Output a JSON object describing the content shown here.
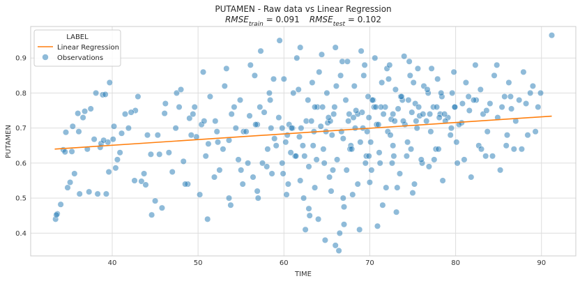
{
  "chart_data": {
    "type": "scatter",
    "title": "PUTAMEN - Raw data vs Linear Regression",
    "subtitle": {
      "rmse_train_label": "RMSE",
      "rmse_train_sub": "train",
      "rmse_train_value": " = 0.091",
      "rmse_test_label": "RMSE",
      "rmse_test_sub": "test",
      "rmse_test_value": " = 0.102"
    },
    "xlabel": "TIME",
    "ylabel": "PUTAMEN",
    "xlim": [
      30.5,
      94
    ],
    "ylim": [
      0.335,
      0.99
    ],
    "xticks": [
      40,
      50,
      60,
      70,
      80,
      90
    ],
    "yticks": [
      0.4,
      0.5,
      0.6,
      0.7,
      0.8,
      0.9
    ],
    "grid": true,
    "legend": {
      "title": "LABEL",
      "position": "top-left",
      "entries": [
        {
          "label": "Linear Regression",
          "kind": "line",
          "color": "#ff7f0e"
        },
        {
          "label": "Observations",
          "kind": "marker",
          "color": "#1f77b4"
        }
      ]
    },
    "series": [
      {
        "name": "Linear Regression",
        "kind": "line",
        "color": "#ff7f0e",
        "x": [
          33.3,
          91.2
        ],
        "y": [
          0.64,
          0.734
        ]
      },
      {
        "name": "Observations",
        "kind": "scatter",
        "color": "#1f77b4",
        "opacity": 0.5,
        "x": [
          33.4,
          33.6,
          34.0,
          34.3,
          34.8,
          35.1,
          35.4,
          35.6,
          36.2,
          36.6,
          37.1,
          37.5,
          38.3,
          38.6,
          38.9,
          39.3,
          39.5,
          39.7,
          40.2,
          40.6,
          41.1,
          41.5,
          42.6,
          43.0,
          43.4,
          44.1,
          44.5,
          45.3,
          45.8,
          33.5,
          34.6,
          35.3,
          36.1,
          36.8,
          37.9,
          38.7,
          39.6,
          40.1,
          40.9,
          41.9,
          42.7,
          43.7,
          44.6,
          45.5,
          46.1,
          38.1,
          39.2,
          40.4,
          34.5,
          36.0,
          37.3,
          39.0,
          42.2,
          43.9,
          45.0,
          46.6,
          47.5,
          48.3,
          49.0,
          49.8,
          50.4,
          51.2,
          52.0,
          52.9,
          53.6,
          54.4,
          55.3,
          56.0,
          56.9,
          57.7,
          58.5,
          59.4,
          60.2,
          61.0,
          61.8,
          62.6,
          63.5,
          64.3,
          65.1,
          65.8,
          66.7,
          67.5,
          68.3,
          69.1,
          69.9,
          70.8,
          71.6,
          72.5,
          73.3,
          74.1,
          74.9,
          75.8,
          76.6,
          77.4,
          78.2,
          79.1,
          79.9,
          80.7,
          81.6,
          82.4,
          83.2,
          84.0,
          84.9,
          85.7,
          86.5,
          87.4,
          88.2,
          89.0,
          89.9,
          91.2,
          47.0,
          48.8,
          50.9,
          52.5,
          54.7,
          56.4,
          58.1,
          59.8,
          61.3,
          62.9,
          64.6,
          66.2,
          67.8,
          69.5,
          71.1,
          72.8,
          74.4,
          76.1,
          77.7,
          79.4,
          81.0,
          82.7,
          84.3,
          86.0,
          87.7,
          89.3,
          46.2,
          48.0,
          49.6,
          51.4,
          53.1,
          54.9,
          56.6,
          58.3,
          60.0,
          61.7,
          63.3,
          65.0,
          66.6,
          68.2,
          69.8,
          71.4,
          73.0,
          74.7,
          76.3,
          77.9,
          79.6,
          81.2,
          82.9,
          84.5,
          86.2,
          87.9,
          47.4,
          49.2,
          50.7,
          52.3,
          53.9,
          55.6,
          57.2,
          58.9,
          60.6,
          62.2,
          63.9,
          65.6,
          67.2,
          68.9,
          70.5,
          72.1,
          73.8,
          75.4,
          77.1,
          78.7,
          80.4,
          82.1,
          83.7,
          85.4,
          87.0,
          88.7,
          48.5,
          50.2,
          51.9,
          53.6,
          55.2,
          56.9,
          58.6,
          60.3,
          61.9,
          63.6,
          65.3,
          66.9,
          68.6,
          70.2,
          71.9,
          73.5,
          75.2,
          76.9,
          78.5,
          80.2,
          81.8,
          83.5,
          85.2,
          86.8,
          47.8,
          50.6,
          53.3,
          56.1,
          58.8,
          61.5,
          64.1,
          66.8,
          69.4,
          72.0,
          74.6,
          77.2,
          79.8,
          82.3,
          84.8,
          51.1,
          53.8,
          57.0,
          60.5,
          63.0,
          65.5,
          67.0,
          68.0,
          70.0,
          71.5,
          73.2,
          75.0,
          57.3,
          59.5,
          61.9,
          64.4,
          66.0,
          67.4,
          69.0,
          70.6,
          72.3,
          74.0,
          75.6,
          62.5,
          64.8,
          66.4,
          68.8,
          70.9,
          73.1,
          55.8,
          58.0,
          60.8,
          63.8,
          65.7,
          67.7,
          69.6,
          71.2,
          72.7,
          74.3,
          76.0,
          78.0,
          66.0,
          66.5,
          67.0,
          64.0,
          62.9,
          62.3,
          59.8,
          63.6,
          65.4,
          68.6,
          70.4,
          71.8,
          73.6,
          75.3,
          76.8,
          78.4,
          59.1,
          61.4,
          64.9,
          67.9,
          69.2,
          70.1,
          71.0,
          72.4,
          73.9,
          75.5,
          77.0,
          78.8,
          60.4,
          62.0,
          63.4,
          65.2,
          66.9,
          68.4,
          69.7,
          71.3,
          72.9,
          74.5,
          76.2,
          77.8,
          79.5,
          61.1,
          62.8,
          64.5,
          66.1,
          67.6,
          69.3,
          70.7,
          72.2,
          73.7,
          75.1,
          76.7,
          78.3,
          79.9,
          81.5,
          55.0,
          57.5,
          59.9,
          62.4,
          64.7,
          67.3,
          69.9,
          72.6,
          74.8,
          77.5,
          80.1,
          83.0,
          85.9,
          88.4,
          49.4,
          52.2,
          54.2,
          56.7,
          58.4,
          60.9,
          63.2,
          65.9,
          68.1,
          70.3,
          72.7,
          75.7,
          78.1,
          80.8,
          83.6,
          86.4,
          89.6
        ],
        "y": [
          0.44,
          0.455,
          0.482,
          0.638,
          0.53,
          0.545,
          0.705,
          0.57,
          0.512,
          0.73,
          0.64,
          0.755,
          0.512,
          0.645,
          0.795,
          0.512,
          0.66,
          0.83,
          0.705,
          0.61,
          0.685,
          0.74,
          0.55,
          0.79,
          0.548,
          0.68,
          0.625,
          0.68,
          0.472,
          0.452,
          0.688,
          0.633,
          0.69,
          0.748,
          0.668,
          0.656,
          0.575,
          0.668,
          0.63,
          0.7,
          0.75,
          0.57,
          0.452,
          0.625,
          0.742,
          0.8,
          0.796,
          0.586,
          0.632,
          0.742,
          0.518,
          0.665,
          0.745,
          0.538,
          0.492,
          0.63,
          0.8,
          0.605,
          0.728,
          0.675,
          0.71,
          0.655,
          0.72,
          0.64,
          0.665,
          0.7,
          0.69,
          0.735,
          0.71,
          0.745,
          0.7,
          0.73,
          0.66,
          0.7,
          0.675,
          0.72,
          0.69,
          0.705,
          0.715,
          0.74,
          0.69,
          0.72,
          0.7,
          0.745,
          0.73,
          0.71,
          0.74,
          0.725,
          0.755,
          0.71,
          0.745,
          0.735,
          0.72,
          0.76,
          0.74,
          0.73,
          0.76,
          0.715,
          0.75,
          0.78,
          0.74,
          0.77,
          0.73,
          0.79,
          0.755,
          0.78,
          0.77,
          0.82,
          0.8,
          0.965,
          0.575,
          0.54,
          0.62,
          0.58,
          0.61,
          0.56,
          0.64,
          0.6,
          0.62,
          0.59,
          0.64,
          0.61,
          0.65,
          0.6,
          0.63,
          0.62,
          0.66,
          0.6,
          0.64,
          0.68,
          0.61,
          0.65,
          0.62,
          0.68,
          0.64,
          0.69,
          0.77,
          0.81,
          0.76,
          0.79,
          0.82,
          0.78,
          0.85,
          0.8,
          0.84,
          0.81,
          0.83,
          0.8,
          0.85,
          0.82,
          0.79,
          0.83,
          0.81,
          0.85,
          0.82,
          0.84,
          0.8,
          0.83,
          0.81,
          0.85,
          0.83,
          0.86,
          0.7,
          0.68,
          0.72,
          0.66,
          0.74,
          0.69,
          0.76,
          0.67,
          0.71,
          0.65,
          0.76,
          0.68,
          0.78,
          0.66,
          0.76,
          0.69,
          0.78,
          0.72,
          0.69,
          0.74,
          0.71,
          0.78,
          0.69,
          0.76,
          0.72,
          0.8,
          0.54,
          0.51,
          0.56,
          0.5,
          0.54,
          0.52,
          0.57,
          0.51,
          0.55,
          0.53,
          0.56,
          0.5,
          0.54,
          0.58,
          0.53,
          0.57,
          0.54,
          0.59,
          0.55,
          0.6,
          0.56,
          0.62,
          0.58,
          0.64,
          0.76,
          0.86,
          0.87,
          0.88,
          0.84,
          0.9,
          0.86,
          0.89,
          0.88,
          0.87,
          0.89,
          0.87,
          0.86,
          0.88,
          0.88,
          0.44,
          0.48,
          0.5,
          0.54,
          0.45,
          0.52,
          0.475,
          0.51,
          0.545,
          0.48,
          0.53,
          0.515,
          0.92,
          0.95,
          0.93,
          0.91,
          0.93,
          0.89,
          0.92,
          0.9,
          0.88,
          0.905,
          0.87,
          0.41,
          0.38,
          0.35,
          0.41,
          0.42,
          0.46,
          0.6,
          0.59,
          0.63,
          0.61,
          0.58,
          0.64,
          0.62,
          0.6,
          0.65,
          0.62,
          0.61,
          0.64,
          0.365,
          0.4,
          0.425,
          0.44,
          0.47,
          0.5,
          0.7,
          0.76,
          0.72,
          0.74,
          0.78,
          0.76,
          0.79,
          0.77,
          0.8,
          0.79,
          0.65,
          0.62,
          0.69,
          0.64,
          0.7,
          0.66,
          0.71,
          0.68,
          0.72,
          0.7,
          0.74,
          0.72,
          0.68,
          0.7,
          0.65,
          0.73,
          0.67,
          0.75,
          0.69,
          0.76,
          0.72,
          0.78,
          0.74,
          0.76,
          0.7,
          0.8,
          0.78,
          0.76,
          0.82,
          0.74,
          0.85,
          0.76,
          0.84,
          0.79,
          0.83,
          0.81,
          0.8,
          0.76,
          0.79,
          0.58,
          0.6,
          0.57,
          0.62,
          0.6,
          0.58,
          0.62,
          0.6,
          0.64,
          0.61,
          0.66,
          0.64,
          0.65,
          0.68,
          0.74,
          0.69,
          0.76,
          0.71,
          0.78,
          0.7,
          0.72,
          0.76,
          0.73,
          0.78,
          0.74,
          0.76,
          0.73,
          0.77,
          0.75,
          0.79,
          0.76
        ]
      }
    ]
  }
}
